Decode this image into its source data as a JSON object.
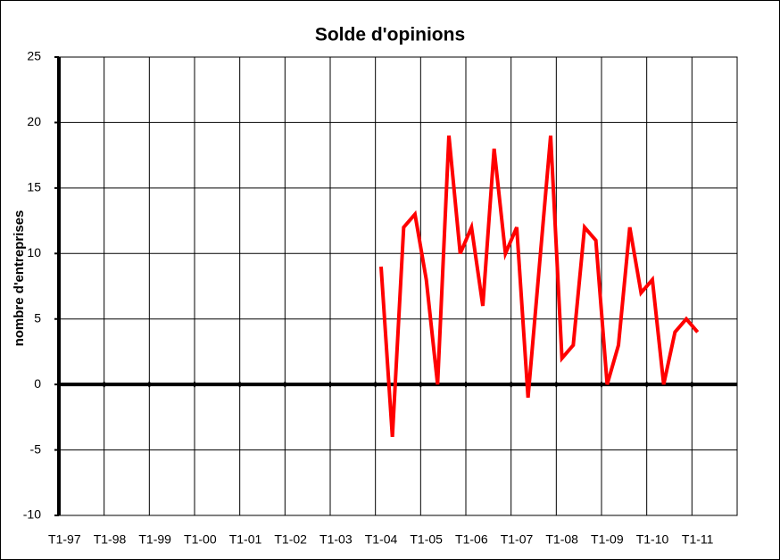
{
  "chart_data": {
    "type": "line",
    "title": "Solde d'opinions",
    "y_label": "nombre d'entreprises",
    "categories": [
      "T1-97",
      null,
      null,
      null,
      "T1-98",
      null,
      null,
      null,
      "T1-99",
      null,
      null,
      null,
      "T1-00",
      null,
      null,
      null,
      "T1-01",
      null,
      null,
      null,
      "T1-02",
      null,
      null,
      null,
      "T1-03",
      null,
      null,
      null,
      "T1-04",
      null,
      null,
      null,
      "T1-05",
      null,
      null,
      null,
      "T1-06",
      null,
      null,
      null,
      "T1-07",
      null,
      null,
      null,
      "T1-08",
      null,
      null,
      null,
      "T1-09",
      null,
      null,
      null,
      "T1-10",
      null,
      null,
      null,
      "T1-11",
      null,
      null,
      null
    ],
    "values": [
      null,
      null,
      null,
      null,
      null,
      null,
      null,
      null,
      null,
      null,
      null,
      null,
      null,
      null,
      null,
      null,
      null,
      null,
      null,
      null,
      null,
      null,
      null,
      null,
      null,
      null,
      null,
      null,
      9,
      -4,
      12,
      13,
      8,
      0,
      19,
      10,
      12,
      6,
      18,
      10,
      12,
      -1,
      9,
      19,
      2,
      3,
      12,
      11,
      0,
      3,
      12,
      7,
      8,
      0,
      4,
      5,
      4,
      null,
      null,
      null
    ],
    "color": "#ff0000",
    "ylim": [
      -10,
      25
    ],
    "yticks": [
      -10,
      -5,
      0,
      5,
      10,
      15,
      20,
      25
    ],
    "grid": true
  }
}
